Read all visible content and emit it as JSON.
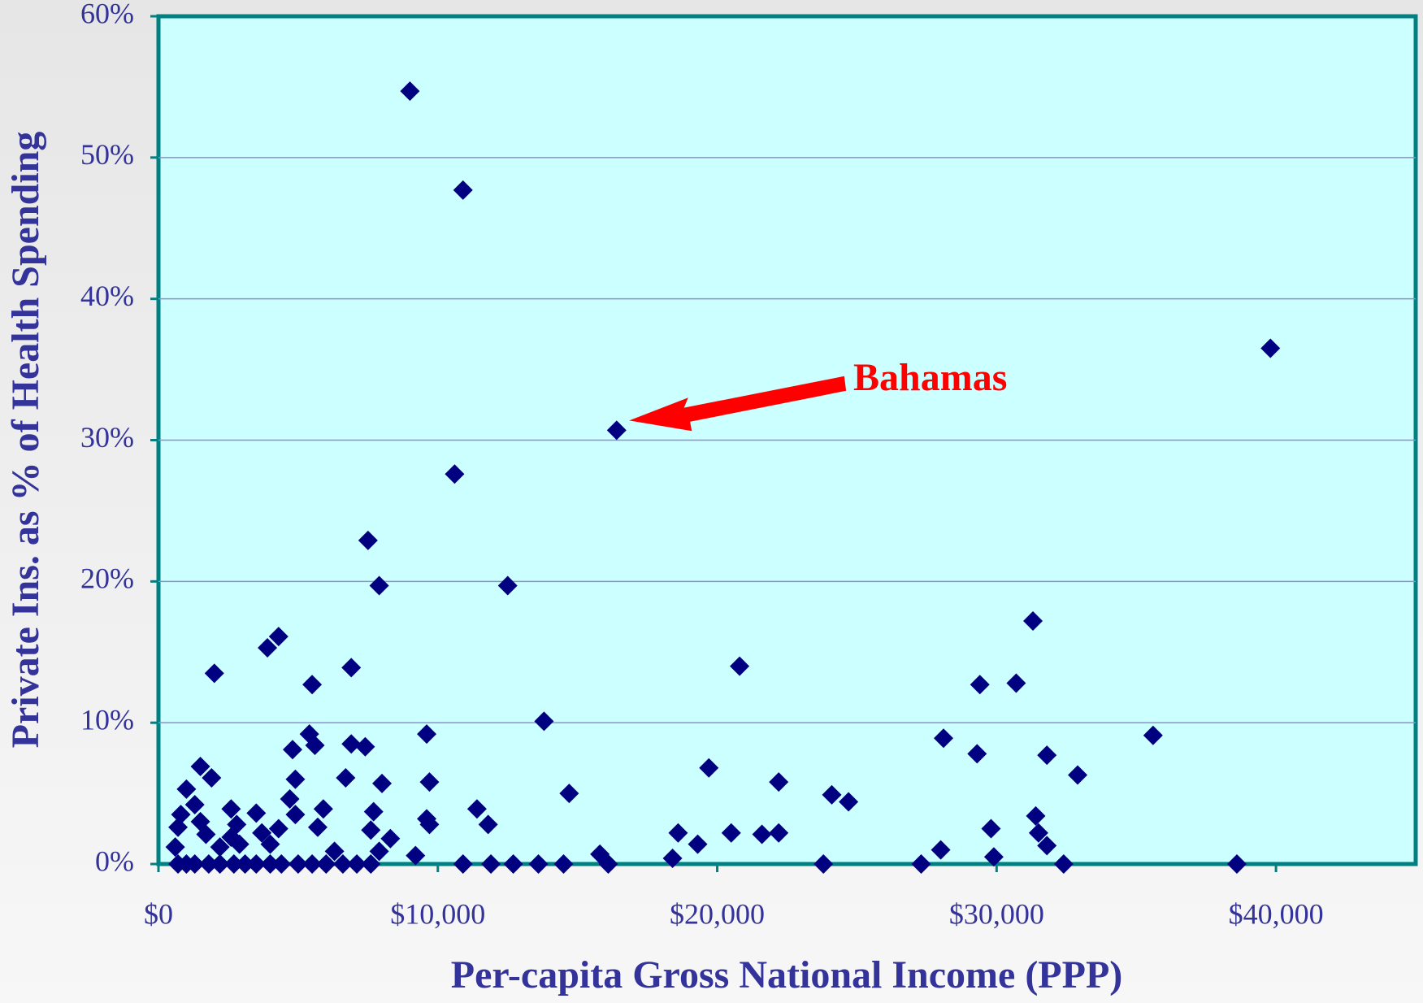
{
  "chart_data": {
    "type": "scatter",
    "x_label": "Per-capita Gross National Income (PPP)",
    "y_label": "Private Ins. as % of Health Spending",
    "annotations": [
      {
        "text": "Bahamas"
      }
    ],
    "color": "#000080",
    "grid": true,
    "xlim": [
      0,
      45000
    ],
    "xticks": [
      {
        "value": 0,
        "label": "$0"
      },
      {
        "value": 10000,
        "label": "$10,000"
      },
      {
        "value": 20000,
        "label": "$20,000"
      },
      {
        "value": 30000,
        "label": "$30,000"
      },
      {
        "value": 40000,
        "label": "$40,000"
      }
    ],
    "ylim": [
      0,
      60
    ],
    "yticks": [
      {
        "value": 0,
        "label": "0%"
      },
      {
        "value": 10,
        "label": "10%"
      },
      {
        "value": 20,
        "label": "20%"
      },
      {
        "value": 30,
        "label": "30%"
      },
      {
        "value": 40,
        "label": "40%"
      },
      {
        "value": 50,
        "label": "50%"
      },
      {
        "value": 60,
        "label": "60%"
      }
    ],
    "x": [
      9000,
      10900,
      39800,
      16400,
      10600,
      7500,
      7900,
      12500,
      31300,
      4300,
      3900,
      20800,
      6900,
      2000,
      5500,
      29400,
      30700,
      13800,
      35600,
      9600,
      5400,
      28100,
      5600,
      6900,
      7400,
      4800,
      29300,
      31800,
      1500,
      19700,
      32900,
      1900,
      6700,
      4900,
      22200,
      9700,
      8000,
      1000,
      14700,
      24100,
      4700,
      24700,
      1300,
      11400,
      2600,
      5900,
      7700,
      3500,
      4900,
      31400,
      800,
      9600,
      1500,
      11800,
      9700,
      2800,
      5700,
      4300,
      700,
      29800,
      7600,
      1700,
      18600,
      20500,
      21600,
      22200,
      3700,
      31500,
      8300,
      2600,
      19300,
      31800,
      4000,
      2900,
      2200,
      600,
      28000,
      6300,
      7900,
      9200,
      15800,
      29900,
      18400,
      700,
      1000,
      1300,
      1800,
      2200,
      2700,
      3100,
      3500,
      4000,
      4400,
      5000,
      5500,
      6000,
      6600,
      7100,
      7600,
      10900,
      11900,
      12700,
      13600,
      14500,
      23800,
      27300,
      32400,
      38600,
      16100
    ],
    "values": [
      54.7,
      47.7,
      36.5,
      30.7,
      27.6,
      22.9,
      19.7,
      19.7,
      17.2,
      16.1,
      15.3,
      14.0,
      13.9,
      13.5,
      12.7,
      12.7,
      12.8,
      10.1,
      9.1,
      9.2,
      9.2,
      8.9,
      8.4,
      8.5,
      8.3,
      8.1,
      7.8,
      7.7,
      6.9,
      6.8,
      6.3,
      6.1,
      6.1,
      6.0,
      5.8,
      5.8,
      5.7,
      5.3,
      5.0,
      4.9,
      4.6,
      4.4,
      4.2,
      3.9,
      3.9,
      3.9,
      3.7,
      3.6,
      3.5,
      3.4,
      3.5,
      3.2,
      3.0,
      2.8,
      2.8,
      2.8,
      2.6,
      2.5,
      2.6,
      2.5,
      2.4,
      2.1,
      2.2,
      2.2,
      2.1,
      2.2,
      2.2,
      2.2,
      1.8,
      1.9,
      1.4,
      1.3,
      1.4,
      1.4,
      1.2,
      1.2,
      1.0,
      0.9,
      0.9,
      0.6,
      0.7,
      0.5,
      0.4,
      0,
      0,
      0,
      0,
      0,
      0,
      0,
      0,
      0,
      0,
      0,
      0,
      0,
      0,
      0,
      0,
      0,
      0,
      0,
      0,
      0,
      0,
      0,
      0,
      0,
      0
    ]
  }
}
